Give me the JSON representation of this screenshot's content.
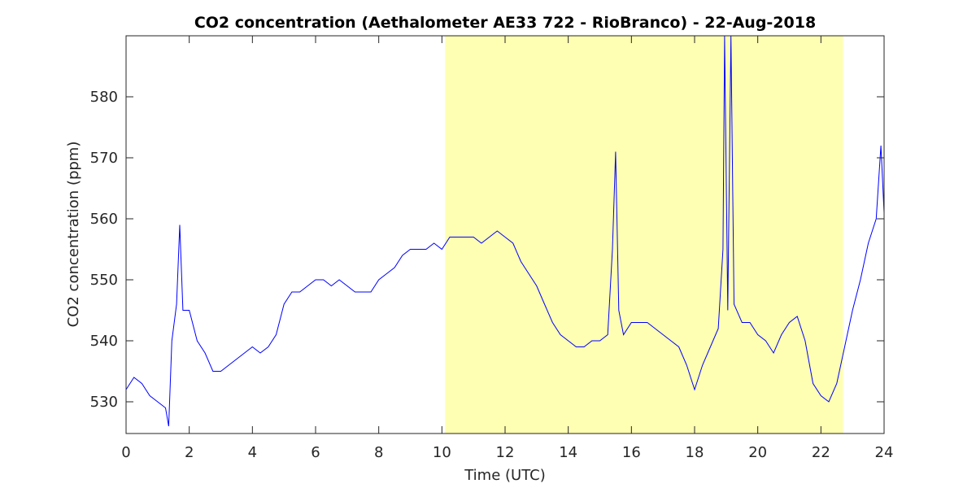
{
  "chart_data": {
    "type": "line",
    "title": "CO2 concentration (Aethalometer AE33 722 - RioBranco) - 22-Aug-2018",
    "xlabel": "Time (UTC)",
    "ylabel": "CO2 concentration (ppm)",
    "xlim": [
      0,
      24
    ],
    "ylim": [
      524.8,
      590
    ],
    "xticks": [
      0,
      2,
      4,
      6,
      8,
      10,
      12,
      14,
      16,
      18,
      20,
      22,
      24
    ],
    "yticks": [
      530,
      540,
      550,
      560,
      570,
      580
    ],
    "highlight": {
      "xrange": [
        10.1,
        22.7
      ],
      "color": "#ffffb3"
    },
    "series": [
      {
        "name": "CO2",
        "color": "#0000ff",
        "x": [
          0,
          0.25,
          0.5,
          0.75,
          1.0,
          1.25,
          1.35,
          1.45,
          1.6,
          1.7,
          1.8,
          2.0,
          2.25,
          2.5,
          2.75,
          3.0,
          3.25,
          3.5,
          3.75,
          4.0,
          4.25,
          4.5,
          4.75,
          5.0,
          5.25,
          5.5,
          5.75,
          6.0,
          6.25,
          6.5,
          6.75,
          7.0,
          7.25,
          7.5,
          7.75,
          8.0,
          8.25,
          8.5,
          8.75,
          9.0,
          9.25,
          9.5,
          9.75,
          10.0,
          10.25,
          10.5,
          10.75,
          11.0,
          11.25,
          11.5,
          11.75,
          12.0,
          12.25,
          12.5,
          12.75,
          13.0,
          13.25,
          13.5,
          13.75,
          14.0,
          14.25,
          14.5,
          14.75,
          15.0,
          15.25,
          15.4,
          15.5,
          15.6,
          15.75,
          16.0,
          16.25,
          16.5,
          16.75,
          17.0,
          17.25,
          17.5,
          17.75,
          18.0,
          18.25,
          18.5,
          18.75,
          18.9,
          18.95,
          19.05,
          19.15,
          19.25,
          19.5,
          19.75,
          20.0,
          20.25,
          20.5,
          20.75,
          21.0,
          21.25,
          21.5,
          21.75,
          22.0,
          22.25,
          22.5,
          22.75,
          23.0,
          23.25,
          23.5,
          23.75,
          23.9,
          24.0
        ],
        "values": [
          532,
          534,
          533,
          531,
          530,
          529,
          526,
          540,
          546,
          559,
          545,
          545,
          540,
          538,
          535,
          535,
          536,
          537,
          538,
          539,
          538,
          539,
          541,
          546,
          548,
          548,
          549,
          550,
          550,
          549,
          550,
          549,
          548,
          548,
          548,
          550,
          551,
          552,
          554,
          555,
          555,
          555,
          556,
          555,
          557,
          557,
          557,
          557,
          556,
          557,
          558,
          557,
          556,
          553,
          551,
          549,
          546,
          543,
          541,
          540,
          539,
          539,
          540,
          540,
          541,
          555,
          571,
          545,
          541,
          543,
          543,
          543,
          542,
          541,
          540,
          539,
          536,
          532,
          536,
          539,
          542,
          555,
          590,
          545,
          590,
          546,
          543,
          543,
          541,
          540,
          538,
          541,
          543,
          544,
          540,
          533,
          531,
          530,
          533,
          539,
          545,
          550,
          556,
          560,
          572,
          561
        ]
      }
    ]
  }
}
